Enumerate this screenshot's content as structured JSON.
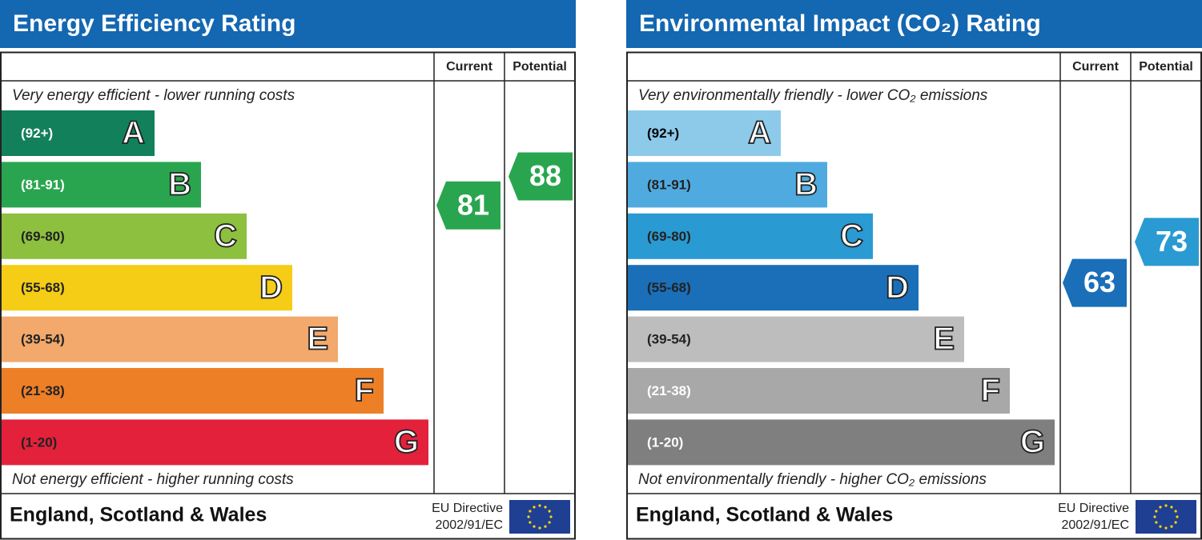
{
  "panels": [
    {
      "title": "Energy Efficiency Rating",
      "top_note": "Very energy efficient - lower running costs",
      "bottom_note": "Not energy efficient - higher running costs",
      "columns": [
        "Current",
        "Potential"
      ],
      "bands": [
        {
          "label": "(92+)",
          "letter": "A",
          "color": "#12805a",
          "text_color": "#ffffff"
        },
        {
          "label": "(81-91)",
          "letter": "B",
          "color": "#2aa54f",
          "text_color": "#ffffff"
        },
        {
          "label": "(69-80)",
          "letter": "C",
          "color": "#8dc03f",
          "text_color": "#222222"
        },
        {
          "label": "(55-68)",
          "letter": "D",
          "color": "#f5cd17",
          "text_color": "#222222"
        },
        {
          "label": "(39-54)",
          "letter": "E",
          "color": "#f2a96b",
          "text_color": "#222222"
        },
        {
          "label": "(21-38)",
          "letter": "F",
          "color": "#ed7f27",
          "text_color": "#222222"
        },
        {
          "label": "(1-20)",
          "letter": "G",
          "color": "#e3213b",
          "text_color": "#222222"
        }
      ],
      "current": 81,
      "potential": 88,
      "footer": {
        "region": "England, Scotland & Wales",
        "directive": [
          "EU Directive",
          "2002/91/EC"
        ]
      }
    },
    {
      "title": "Environmental Impact (CO₂) Rating",
      "top_note": "Very environmentally friendly - lower CO₂ emissions",
      "bottom_note": "Not environmentally friendly - higher CO₂ emissions",
      "columns": [
        "Current",
        "Potential"
      ],
      "bands": [
        {
          "label": "(92+)",
          "letter": "A",
          "color": "#8dcaea",
          "text_color": "#000000"
        },
        {
          "label": "(81-91)",
          "letter": "B",
          "color": "#4fabdf",
          "text_color": "#222222"
        },
        {
          "label": "(69-80)",
          "letter": "C",
          "color": "#2a9ad2",
          "text_color": "#222222"
        },
        {
          "label": "(55-68)",
          "letter": "D",
          "color": "#1a6fb8",
          "text_color": "#222222"
        },
        {
          "label": "(39-54)",
          "letter": "E",
          "color": "#bdbdbd",
          "text_color": "#222222"
        },
        {
          "label": "(21-38)",
          "letter": "F",
          "color": "#a8a8a8",
          "text_color": "#ffffff"
        },
        {
          "label": "(1-20)",
          "letter": "G",
          "color": "#7f7f7f",
          "text_color": "#ffffff"
        }
      ],
      "current": 63,
      "potential": 73,
      "footer": {
        "region": "England, Scotland & Wales",
        "directive": [
          "EU Directive",
          "2002/91/EC"
        ]
      }
    }
  ]
}
